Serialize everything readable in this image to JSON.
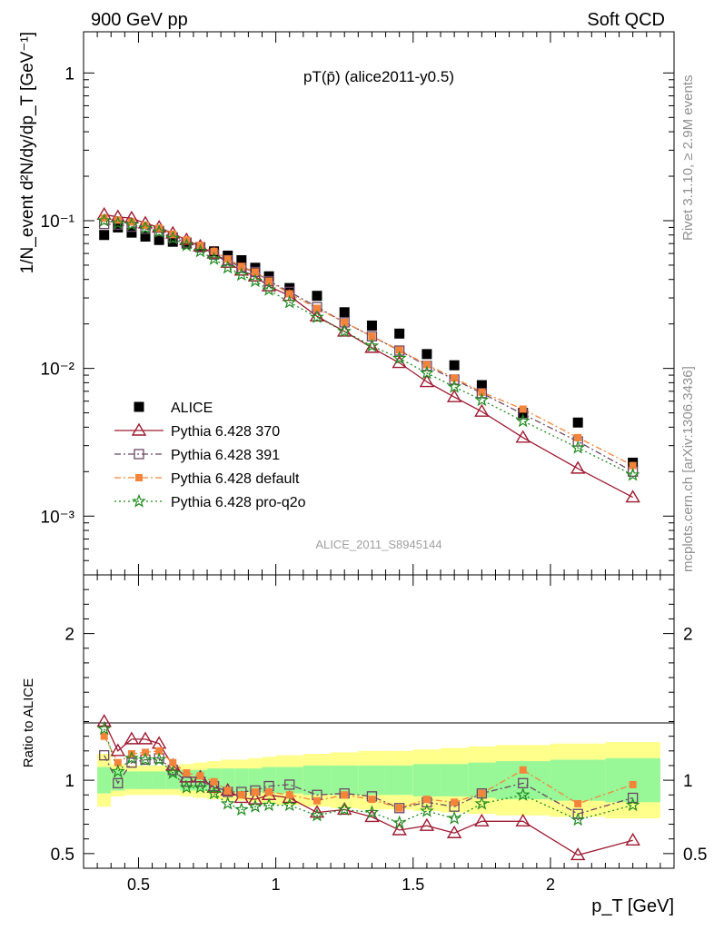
{
  "header": {
    "left": "900 GeV pp",
    "right": "Soft QCD"
  },
  "side_labels": {
    "top": "Rivet 3.1.10, ≥ 2.9M events",
    "bottom": "mcplots.cern.ch [arXiv:1306.3436]"
  },
  "watermark": "ALICE_2011_S8945144",
  "chart_data": {
    "type": "scatter",
    "title": "pT(p̄) (alice2011-y0.5)",
    "xlabel": "p_T [GeV]",
    "ylabel": "1/N_event d²N/dy/dp_T [GeV⁻¹]",
    "ratio_ylabel": "Ratio to ALICE",
    "xlim": [
      0.3,
      2.45
    ],
    "ylim": [
      0.0004,
      1.9
    ],
    "ylog": true,
    "ratio_ylim": [
      0.4,
      2.4
    ],
    "x_ticks": [
      {
        "v": 0.5,
        "label": "0.5"
      },
      {
        "v": 1,
        "label": "1"
      },
      {
        "v": 1.5,
        "label": "1.5"
      },
      {
        "v": 2,
        "label": "2"
      }
    ],
    "y_ticks": [
      {
        "v": 1,
        "label": "1"
      },
      {
        "v": 0.1,
        "label": "10⁻¹"
      },
      {
        "v": 0.01,
        "label": "10⁻²"
      },
      {
        "v": 0.001,
        "label": "10⁻³"
      }
    ],
    "ratio_ticks": [
      {
        "v": 0.5,
        "label": "0.5"
      },
      {
        "v": 1,
        "label": "1"
      },
      {
        "v": 2,
        "label": "2"
      }
    ],
    "x": [
      0.375,
      0.425,
      0.475,
      0.525,
      0.575,
      0.625,
      0.675,
      0.725,
      0.775,
      0.825,
      0.875,
      0.925,
      0.975,
      1.05,
      1.15,
      1.25,
      1.35,
      1.45,
      1.55,
      1.65,
      1.75,
      1.9,
      2.1,
      2.3
    ],
    "band_edges": [
      0.35,
      0.4,
      0.45,
      0.5,
      0.55,
      0.6,
      0.65,
      0.7,
      0.75,
      0.8,
      0.85,
      0.9,
      0.95,
      1.0,
      1.1,
      1.2,
      1.3,
      1.4,
      1.5,
      1.6,
      1.7,
      1.8,
      2.0,
      2.2,
      2.4
    ],
    "band_inner": [
      0.09,
      0.07,
      0.06,
      0.06,
      0.06,
      0.06,
      0.07,
      0.07,
      0.08,
      0.08,
      0.08,
      0.08,
      0.09,
      0.09,
      0.1,
      0.1,
      0.1,
      0.1,
      0.11,
      0.11,
      0.12,
      0.13,
      0.14,
      0.15
    ],
    "band_outer": [
      0.18,
      0.11,
      0.1,
      0.1,
      0.1,
      0.1,
      0.11,
      0.12,
      0.13,
      0.14,
      0.14,
      0.15,
      0.16,
      0.17,
      0.18,
      0.19,
      0.2,
      0.2,
      0.21,
      0.22,
      0.23,
      0.24,
      0.25,
      0.26
    ],
    "series": [
      {
        "name": "ALICE",
        "color": "#000000",
        "marker": "square-filled",
        "line": "none",
        "values": [
          0.08,
          0.09,
          0.083,
          0.078,
          0.074,
          0.072,
          0.07,
          0.066,
          0.062,
          0.058,
          0.054,
          0.048,
          0.042,
          0.035,
          0.031,
          0.024,
          0.0195,
          0.0172,
          0.0125,
          0.0105,
          0.0077,
          0.005,
          0.0043,
          0.0023
        ],
        "ratio": [
          1,
          1,
          1,
          1,
          1,
          1,
          1,
          1,
          1,
          1,
          1,
          1,
          1,
          1,
          1,
          1,
          1,
          1,
          1,
          1,
          1,
          1,
          1,
          1
        ]
      },
      {
        "name": "Pythia 6.428 370",
        "color": "#9e1b32",
        "marker": "triangle-open",
        "line": "solid",
        "values": [
          0.11,
          0.106,
          0.104,
          0.096,
          0.09,
          0.082,
          0.074,
          0.067,
          0.06,
          0.052,
          0.046,
          0.042,
          0.036,
          0.031,
          0.0225,
          0.0178,
          0.0138,
          0.0109,
          0.0081,
          0.0064,
          0.0051,
          0.0034,
          0.0021,
          0.00134
        ],
        "ratio": [
          1.4,
          1.2,
          1.28,
          1.28,
          1.25,
          1.1,
          1.02,
          1.02,
          0.95,
          0.93,
          0.88,
          0.87,
          0.9,
          0.88,
          0.78,
          0.8,
          0.75,
          0.66,
          0.69,
          0.64,
          0.72,
          0.72,
          0.49,
          0.59
        ]
      },
      {
        "name": "Pythia 6.428 391",
        "color": "#6b4764",
        "marker": "square-open",
        "line": "dashdot",
        "values": [
          0.095,
          0.094,
          0.091,
          0.088,
          0.085,
          0.077,
          0.071,
          0.066,
          0.059,
          0.054,
          0.048,
          0.045,
          0.039,
          0.033,
          0.026,
          0.0205,
          0.0165,
          0.0132,
          0.0104,
          0.0084,
          0.0068,
          0.0049,
          0.0032,
          0.002
        ],
        "ratio": [
          1.17,
          0.98,
          1.12,
          1.14,
          1.15,
          1.07,
          0.99,
          0.99,
          0.96,
          0.92,
          0.92,
          0.93,
          0.96,
          0.97,
          0.9,
          0.91,
          0.89,
          0.81,
          0.85,
          0.82,
          0.91,
          0.98,
          0.77,
          0.88
        ]
      },
      {
        "name": "Pythia 6.428 default",
        "color": "#f4843a",
        "marker": "square-filled-small",
        "line": "dashdot",
        "values": [
          0.104,
          0.101,
          0.098,
          0.093,
          0.089,
          0.081,
          0.074,
          0.068,
          0.062,
          0.055,
          0.049,
          0.045,
          0.039,
          0.032,
          0.0255,
          0.0205,
          0.0165,
          0.0133,
          0.0106,
          0.0086,
          0.0069,
          0.0053,
          0.0034,
          0.0022
        ],
        "ratio": [
          1.3,
          1.12,
          1.18,
          1.19,
          1.2,
          1.12,
          1.05,
          1.03,
          0.99,
          0.93,
          0.9,
          0.92,
          0.92,
          0.9,
          0.86,
          0.9,
          0.87,
          0.81,
          0.87,
          0.85,
          0.91,
          1.07,
          0.84,
          0.97
        ]
      },
      {
        "name": "Pythia 6.428 pro-q2o",
        "color": "#1f8a1f",
        "marker": "star-open",
        "line": "dotted",
        "values": [
          0.1,
          0.096,
          0.094,
          0.089,
          0.084,
          0.076,
          0.068,
          0.062,
          0.055,
          0.048,
          0.043,
          0.039,
          0.034,
          0.028,
          0.0222,
          0.0178,
          0.0142,
          0.0117,
          0.0093,
          0.0075,
          0.0061,
          0.0044,
          0.0029,
          0.0019
        ],
        "ratio": [
          1.35,
          1.06,
          1.15,
          1.14,
          1.14,
          1.05,
          0.95,
          0.95,
          0.91,
          0.84,
          0.8,
          0.82,
          0.83,
          0.83,
          0.76,
          0.8,
          0.78,
          0.71,
          0.79,
          0.74,
          0.84,
          0.9,
          0.73,
          0.83
        ]
      }
    ],
    "legend_position": "bottom-left"
  }
}
